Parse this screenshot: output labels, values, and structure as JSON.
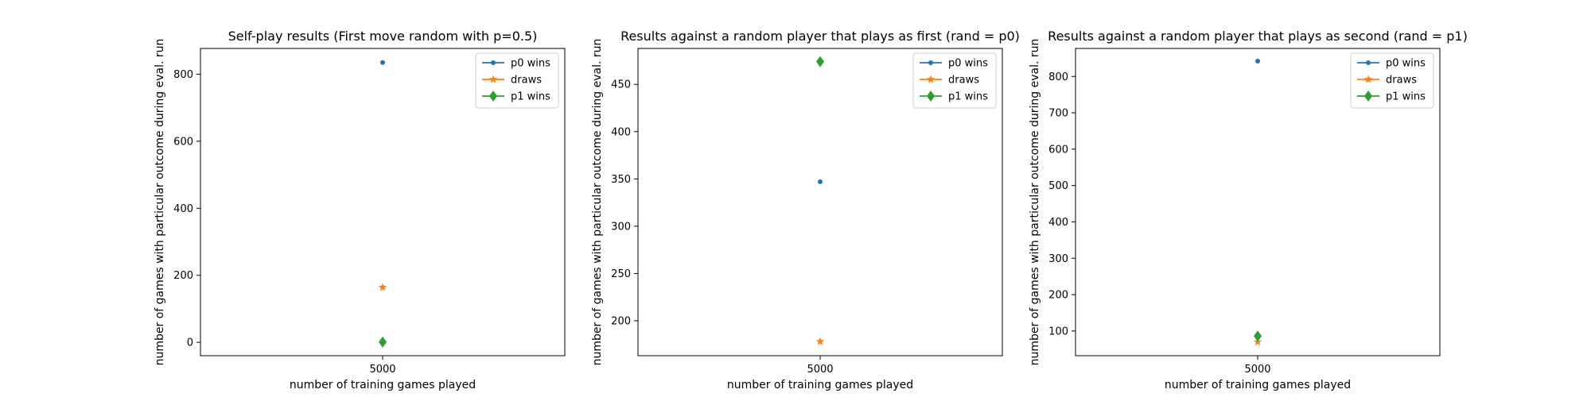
{
  "colors": {
    "p0": "#1f77b4",
    "draws": "#ff7f0e",
    "p1": "#2ca02c"
  },
  "chart_data": [
    {
      "type": "scatter",
      "title": "Self-play results (First move random with p=0.5)",
      "xlabel": "number of training games played",
      "ylabel": "number of games with particular outcome during eval. run",
      "x": [
        5000
      ],
      "xticks": [
        "5000"
      ],
      "ylim": [
        -40,
        877
      ],
      "yticks": [
        0,
        200,
        400,
        600,
        800
      ],
      "grid": false,
      "legend_position": "top-right",
      "series": [
        {
          "name": "p0 wins",
          "marker": "dot",
          "color": "#1f77b4",
          "values": [
            835
          ]
        },
        {
          "name": "draws",
          "marker": "star",
          "color": "#ff7f0e",
          "values": [
            164
          ]
        },
        {
          "name": "p1 wins",
          "marker": "diamond",
          "color": "#2ca02c",
          "values": [
            1
          ]
        }
      ]
    },
    {
      "type": "scatter",
      "title": "Results against a random player that plays as first (rand = p0)",
      "xlabel": "number of training games played",
      "ylabel": "number of games with particular outcome during eval. run",
      "x": [
        5000
      ],
      "xticks": [
        "5000"
      ],
      "ylim": [
        163,
        488
      ],
      "yticks": [
        200,
        250,
        300,
        350,
        400,
        450
      ],
      "grid": false,
      "legend_position": "top-right",
      "series": [
        {
          "name": "p0 wins",
          "marker": "dot",
          "color": "#1f77b4",
          "values": [
            347
          ]
        },
        {
          "name": "draws",
          "marker": "star",
          "color": "#ff7f0e",
          "values": [
            178
          ]
        },
        {
          "name": "p1 wins",
          "marker": "diamond",
          "color": "#2ca02c",
          "values": [
            474
          ]
        }
      ]
    },
    {
      "type": "scatter",
      "title": "Results against a random player that plays as second (rand = p1)",
      "xlabel": "number of training games played",
      "ylabel": "number of games with particular outcome during eval. run",
      "x": [
        5000
      ],
      "xticks": [
        "5000"
      ],
      "ylim": [
        32,
        877
      ],
      "yticks": [
        100,
        200,
        300,
        400,
        500,
        600,
        700,
        800
      ],
      "grid": false,
      "legend_position": "top-right",
      "series": [
        {
          "name": "p0 wins",
          "marker": "dot",
          "color": "#1f77b4",
          "values": [
            842
          ]
        },
        {
          "name": "draws",
          "marker": "star",
          "color": "#ff7f0e",
          "values": [
            70
          ]
        },
        {
          "name": "p1 wins",
          "marker": "diamond",
          "color": "#2ca02c",
          "values": [
            86
          ]
        }
      ]
    }
  ]
}
